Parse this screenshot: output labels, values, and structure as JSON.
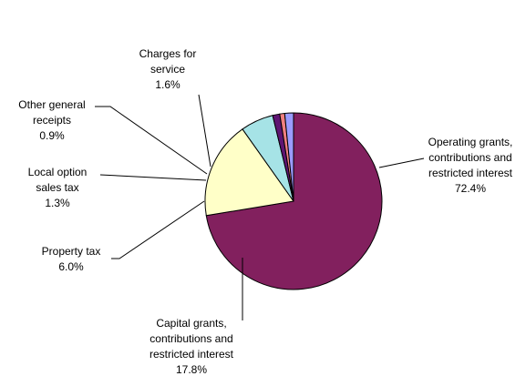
{
  "chart_data": {
    "type": "pie",
    "title": "",
    "start_angle_deg": 0,
    "direction": "clockwise",
    "slices": [
      {
        "key": "operating",
        "label_lines": [
          "Operating grants,",
          "contributions and",
          "restricted interest"
        ],
        "value_text": "72.4%",
        "value": 72.4,
        "color": "#82205E"
      },
      {
        "key": "capital",
        "label_lines": [
          "Capital grants,",
          "contributions and",
          "restricted interest"
        ],
        "value_text": "17.8%",
        "value": 17.8,
        "color": "#FFFFC8"
      },
      {
        "key": "property",
        "label_lines": [
          "Property tax"
        ],
        "value_text": "6.0%",
        "value": 6.0,
        "color": "#A6E3E6"
      },
      {
        "key": "local-option",
        "label_lines": [
          "Local option",
          "sales tax"
        ],
        "value_text": "1.3%",
        "value": 1.3,
        "color": "#5E1573"
      },
      {
        "key": "other-general",
        "label_lines": [
          "Other general",
          "receipts"
        ],
        "value_text": "0.9%",
        "value": 0.9,
        "color": "#F08080"
      },
      {
        "key": "charges",
        "label_lines": [
          "Charges for",
          "service"
        ],
        "value_text": "1.6%",
        "value": 1.6,
        "color": "#9B9BFF"
      }
    ]
  }
}
